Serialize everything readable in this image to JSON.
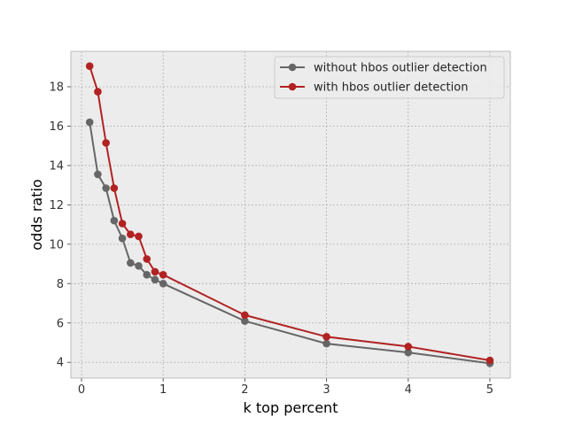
{
  "chart_data": {
    "type": "line",
    "xlabel": "k top percent",
    "ylabel": "odds ratio",
    "xlim": [
      -0.13,
      5.25
    ],
    "ylim": [
      3.2,
      19.8
    ],
    "xticks": [
      0,
      1,
      2,
      3,
      4,
      5
    ],
    "yticks": [
      4,
      6,
      8,
      10,
      12,
      14,
      16,
      18
    ],
    "grid": true,
    "legend_position": "top-right",
    "x": [
      0.1,
      0.2,
      0.3,
      0.4,
      0.5,
      0.6,
      0.7,
      0.8,
      0.9,
      1,
      2,
      3,
      4,
      5
    ],
    "series": [
      {
        "name": "without hbos outlier detection",
        "color": "#666666",
        "values": [
          16.2,
          13.55,
          12.85,
          11.2,
          10.3,
          9.05,
          8.9,
          8.45,
          8.2,
          8.0,
          6.1,
          4.95,
          4.5,
          3.95
        ]
      },
      {
        "name": "with hbos outlier detection",
        "color": "#b22222",
        "values": [
          19.05,
          17.75,
          15.15,
          12.85,
          11.05,
          10.5,
          10.4,
          9.25,
          8.6,
          8.45,
          6.4,
          5.3,
          4.8,
          4.1
        ]
      }
    ]
  },
  "colors": {
    "plot_background": "#ececec",
    "grid": "#b0b0b0",
    "frame": "#bcbcbc"
  }
}
